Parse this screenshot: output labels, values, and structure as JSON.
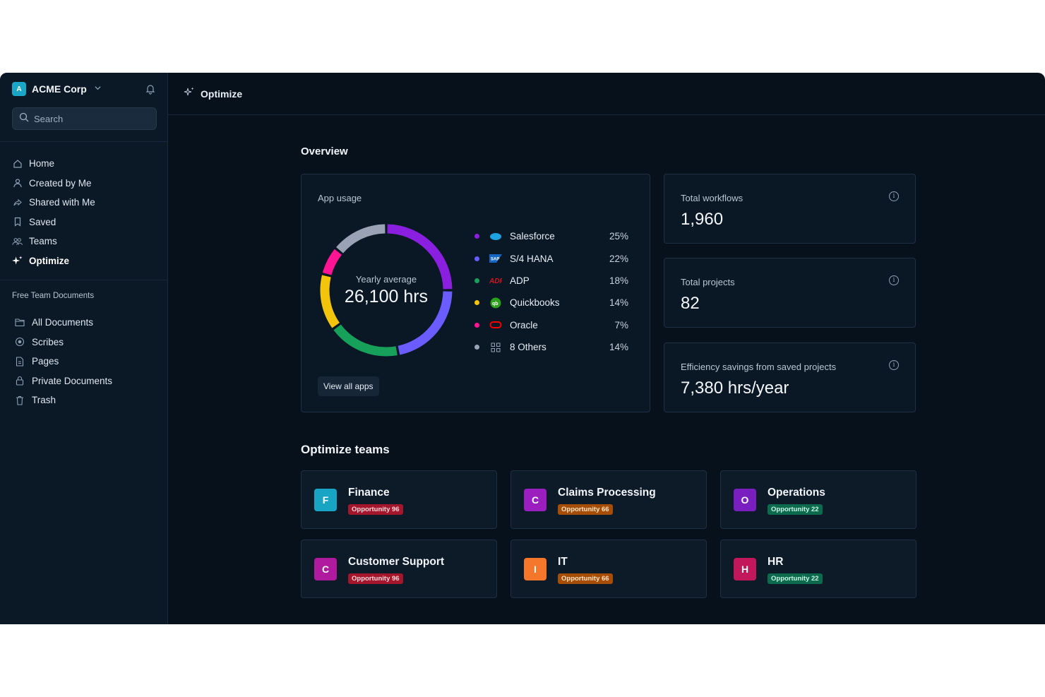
{
  "org": {
    "initial": "A",
    "name": "ACME Corp"
  },
  "search": {
    "placeholder": "Search"
  },
  "nav": [
    {
      "label": "Home",
      "icon": "home-icon"
    },
    {
      "label": "Created by Me",
      "icon": "user-icon"
    },
    {
      "label": "Shared with Me",
      "icon": "share-icon"
    },
    {
      "label": "Saved",
      "icon": "bookmark-icon"
    },
    {
      "label": "Teams",
      "icon": "team-icon"
    },
    {
      "label": "Optimize",
      "icon": "sparkle-icon",
      "active": true
    }
  ],
  "docs_section": {
    "title": "Free Team Documents",
    "items": [
      {
        "label": "All Documents",
        "icon": "folder-icon"
      },
      {
        "label": "Scribes",
        "icon": "record-icon"
      },
      {
        "label": "Pages",
        "icon": "page-icon"
      },
      {
        "label": "Private Documents",
        "icon": "lock-icon"
      },
      {
        "label": "Trash",
        "icon": "trash-icon"
      }
    ]
  },
  "topbar": {
    "title": "Optimize"
  },
  "overview": {
    "title": "Overview",
    "app_usage": {
      "title": "App usage",
      "center_label": "Yearly average",
      "center_value": "26,100 hrs",
      "view_all": "View all apps",
      "apps": [
        {
          "name": "Salesforce",
          "pct": "25%",
          "value": 25,
          "color": "#8a1fe0",
          "logo": "salesforce-logo-icon"
        },
        {
          "name": "S/4 HANA",
          "pct": "22%",
          "value": 22,
          "color": "#6a5cff",
          "logo": "sap-logo-icon"
        },
        {
          "name": "ADP",
          "pct": "18%",
          "value": 18,
          "color": "#16a05a",
          "logo": "adp-logo-icon"
        },
        {
          "name": "Quickbooks",
          "pct": "14%",
          "value": 14,
          "color": "#f2c40c",
          "logo": "quickbooks-logo-icon"
        },
        {
          "name": "Oracle",
          "pct": "7%",
          "value": 7,
          "color": "#ff1493",
          "logo": "oracle-logo-icon"
        },
        {
          "name": "8 Others",
          "pct": "14%",
          "value": 14,
          "color": "#9aa3b5",
          "logo": "grid-icon"
        }
      ]
    },
    "stats": [
      {
        "label": "Total workflows",
        "value": "1,960"
      },
      {
        "label": "Total projects",
        "value": "82"
      },
      {
        "label": "Efficiency savings from saved projects",
        "value": "7,380 hrs/year"
      }
    ]
  },
  "teams": {
    "title": "Optimize teams",
    "items": [
      {
        "initial": "F",
        "name": "Finance",
        "badge": "Opportunity 96",
        "avatar_color": "#18a5c4",
        "badge_tone": "red"
      },
      {
        "initial": "C",
        "name": "Claims Processing",
        "badge": "Opportunity 66",
        "avatar_color": "#9b1fbf",
        "badge_tone": "orange"
      },
      {
        "initial": "O",
        "name": "Operations",
        "badge": "Opportunity 22",
        "avatar_color": "#7a1fbf",
        "badge_tone": "green"
      },
      {
        "initial": "C",
        "name": "Customer Support",
        "badge": "Opportunity 96",
        "avatar_color": "#b01a9e",
        "badge_tone": "red"
      },
      {
        "initial": "I",
        "name": "IT",
        "badge": "Opportunity 66",
        "avatar_color": "#f5772b",
        "badge_tone": "orange"
      },
      {
        "initial": "H",
        "name": "HR",
        "badge": "Opportunity 22",
        "avatar_color": "#c2185b",
        "badge_tone": "green"
      }
    ]
  }
}
